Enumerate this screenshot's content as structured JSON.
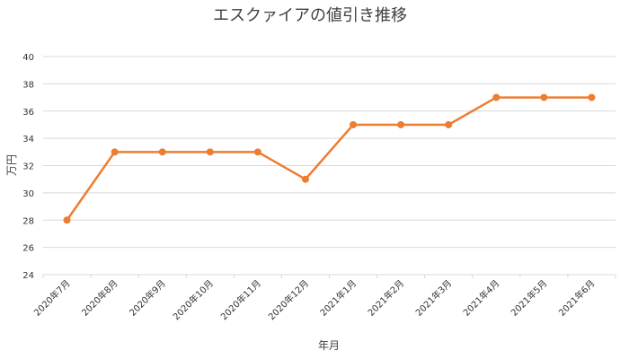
{
  "chart_data": {
    "type": "line",
    "title": "エスクァイアの値引き推移",
    "xlabel": "年月",
    "ylabel": "万円",
    "categories": [
      "2020年7月",
      "2020年8月",
      "2020年9月",
      "2020年10月",
      "2020年11月",
      "2020年12月",
      "2021年1月",
      "2021年2月",
      "2021年3月",
      "2021年4月",
      "2021年5月",
      "2021年6月"
    ],
    "series": [
      {
        "values": [
          28,
          33,
          33,
          33,
          33,
          31,
          35,
          35,
          35,
          37,
          37,
          37
        ]
      }
    ],
    "ylim": [
      24,
      40
    ],
    "yticks": [
      24,
      26,
      28,
      30,
      32,
      34,
      36,
      38,
      40
    ],
    "grid": true,
    "legend": "none",
    "line_color": "#ED7D31"
  }
}
